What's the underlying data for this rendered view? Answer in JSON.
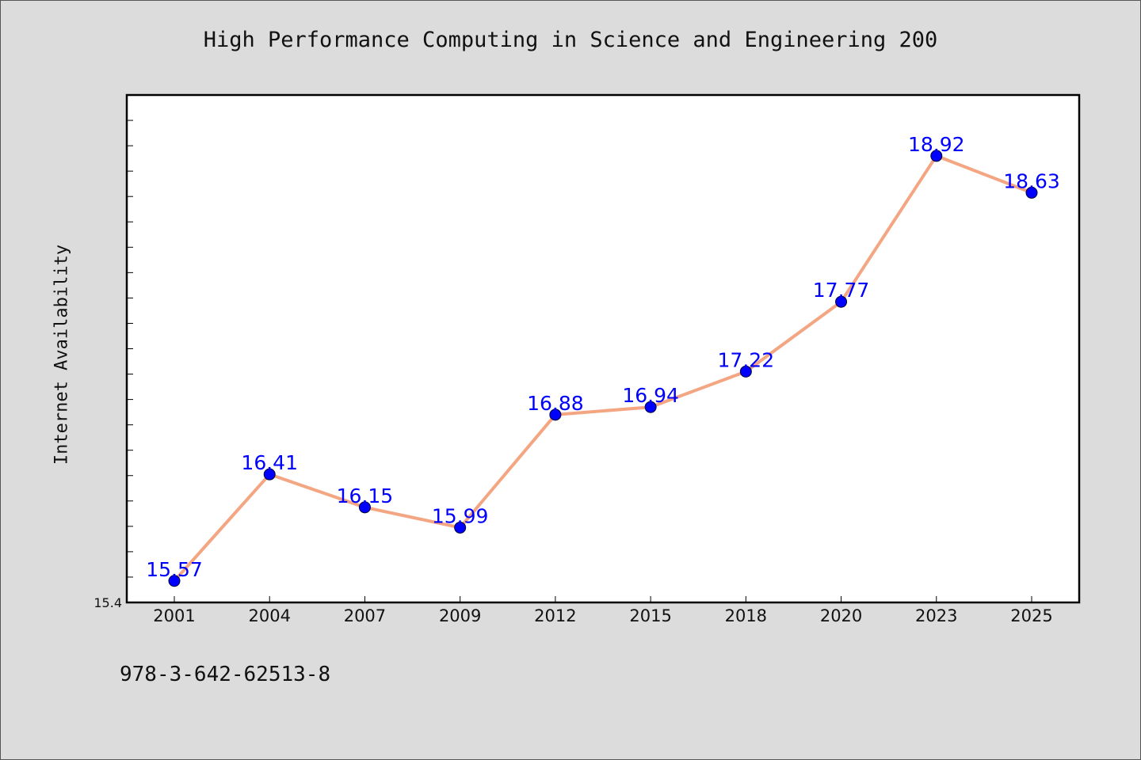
{
  "chart_data": {
    "type": "line",
    "title": "High Performance Computing in Science and Engineering 200",
    "xlabel": "",
    "ylabel": "Internet Availability",
    "categories": [
      "2001",
      "2004",
      "2007",
      "2009",
      "2012",
      "2015",
      "2018",
      "2020",
      "2023",
      "2025"
    ],
    "series": [
      {
        "values": [
          15.57,
          16.41,
          16.15,
          15.99,
          16.88,
          16.94,
          17.22,
          17.77,
          18.92,
          18.63
        ],
        "data_labels": [
          "15.57",
          "16.41",
          "16.15",
          "15.99",
          "16.88",
          "16.94",
          "17.22",
          "17.77",
          "18.92",
          "18.63"
        ]
      }
    ],
    "ylim": [
      15.4,
      19.4
    ],
    "yticks": [
      "15.4"
    ],
    "grid": false,
    "legend": "none",
    "colors": {
      "line": "#f4a582",
      "marker": "#0000ff",
      "data_label": "#0000ff",
      "background": "#dcdcdc",
      "plot_background": "#ffffff"
    }
  },
  "footer": {
    "isbn": "978-3-642-62513-8"
  }
}
